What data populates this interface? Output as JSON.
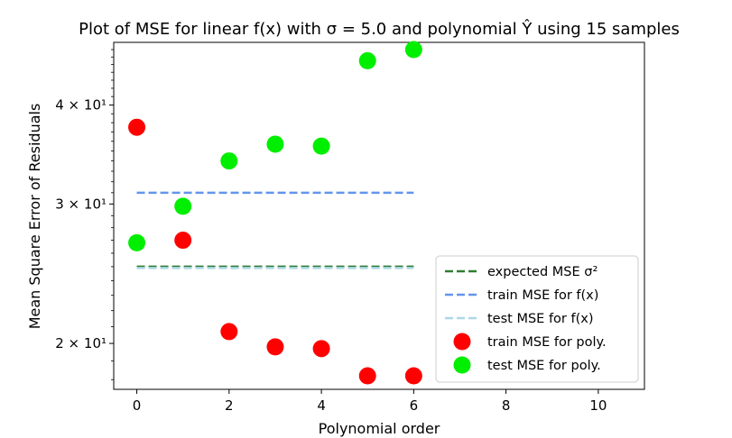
{
  "chart_data": {
    "type": "scatter",
    "title": "Plot of MSE for linear f(x) with σ = 5.0 and polynomial Ŷ using 15 samples",
    "xlabel": "Polynomial order",
    "ylabel": "Mean Square Error of Residuals",
    "xlim": [
      -0.5,
      11
    ],
    "ylim": [
      17.5,
      48
    ],
    "yscale": "log",
    "grid": false,
    "legend_position": "lower-right",
    "x_ticks": [
      0,
      2,
      4,
      6,
      8,
      10
    ],
    "x_tick_labels": [
      "0",
      "2",
      "4",
      "6",
      "8",
      "10"
    ],
    "y_ticks": [
      20,
      30,
      40
    ],
    "y_tick_labels": [
      "2 × 10¹",
      "3 × 10¹",
      "4 × 10¹"
    ],
    "lines": [
      {
        "name": "expected MSE σ²",
        "x": [
          0,
          6
        ],
        "y": [
          25.0,
          25.0
        ],
        "color": "#2e7d32",
        "style": "dashed"
      },
      {
        "name": "train MSE for f(x)",
        "x": [
          0,
          6
        ],
        "y": [
          31.0,
          31.0
        ],
        "color": "#6495ed",
        "style": "dashed"
      },
      {
        "name": "test MSE for f(x)",
        "x": [
          0,
          6
        ],
        "y": [
          24.9,
          24.9
        ],
        "color": "#add8e6",
        "style": "dashed"
      }
    ],
    "series": [
      {
        "name": "train MSE for poly.",
        "color": "#ff0000",
        "x": [
          0,
          1,
          2,
          3,
          4,
          5,
          6
        ],
        "y": [
          37.5,
          27.0,
          20.7,
          19.8,
          19.7,
          18.2,
          18.2
        ]
      },
      {
        "name": "test MSE for poly.",
        "color": "#00ee00",
        "x": [
          0,
          1,
          2,
          3,
          4,
          5,
          6
        ],
        "y": [
          26.8,
          29.8,
          34.0,
          35.7,
          35.5,
          45.5,
          47.0
        ]
      }
    ],
    "legend": [
      {
        "label": "expected MSE σ²",
        "kind": "line",
        "color": "#2e7d32"
      },
      {
        "label": "train MSE for f(x)",
        "kind": "line",
        "color": "#6495ed"
      },
      {
        "label": "test MSE for f(x)",
        "kind": "line",
        "color": "#add8e6"
      },
      {
        "label": "train MSE for poly.",
        "kind": "marker",
        "color": "#ff0000"
      },
      {
        "label": "test MSE for poly.",
        "kind": "marker",
        "color": "#00ee00"
      }
    ]
  }
}
